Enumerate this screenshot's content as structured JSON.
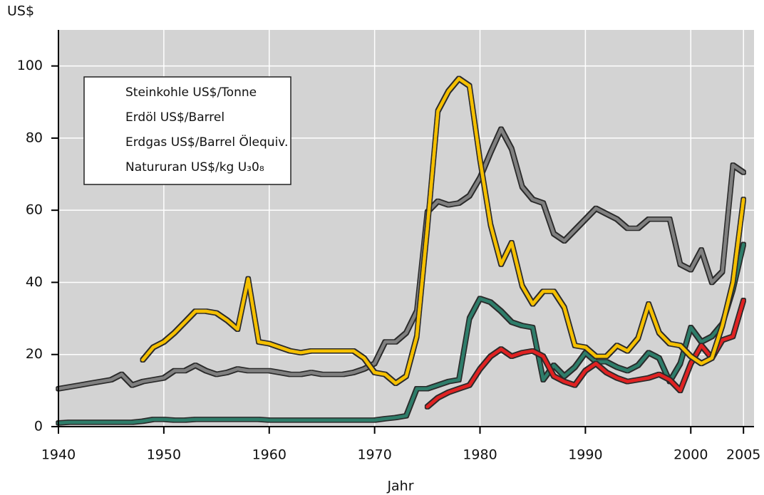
{
  "chart_data": {
    "type": "line",
    "ylabel": "US$",
    "xlabel": "Jahr",
    "xlim": [
      1940,
      2006
    ],
    "ylim": [
      0,
      110
    ],
    "xticks": [
      1940,
      1950,
      1960,
      1970,
      1980,
      1990,
      2000,
      2005
    ],
    "yticks": [
      0,
      20,
      40,
      60,
      80,
      100
    ],
    "grid": true,
    "legend": "upper left",
    "x": [
      1940,
      1941,
      1942,
      1943,
      1944,
      1945,
      1946,
      1947,
      1948,
      1949,
      1950,
      1951,
      1952,
      1953,
      1954,
      1955,
      1956,
      1957,
      1958,
      1959,
      1960,
      1961,
      1962,
      1963,
      1964,
      1965,
      1966,
      1967,
      1968,
      1969,
      1970,
      1971,
      1972,
      1973,
      1974,
      1975,
      1976,
      1977,
      1978,
      1979,
      1980,
      1981,
      1982,
      1983,
      1984,
      1985,
      1986,
      1987,
      1988,
      1989,
      1990,
      1991,
      1992,
      1993,
      1994,
      1995,
      1996,
      1997,
      1998,
      1999,
      2000,
      2001,
      2002,
      2003,
      2004,
      2005
    ],
    "series": [
      {
        "name": "Steinkohle US$/Tonne",
        "color": "#808080",
        "values": [
          10.5,
          11,
          11.5,
          12,
          12.5,
          13,
          14.5,
          11.5,
          12.5,
          13,
          13.5,
          15.5,
          15.5,
          17,
          15.5,
          14.5,
          15,
          16,
          15.5,
          15.5,
          15.5,
          15,
          14.5,
          14.5,
          15,
          14.5,
          14.5,
          14.5,
          15,
          16,
          17.5,
          23.5,
          23.5,
          26,
          32,
          59.5,
          62.5,
          61.5,
          62,
          64,
          69,
          76,
          82.5,
          77,
          66.5,
          63,
          62,
          53.5,
          51.5,
          54.5,
          57.5,
          60.5,
          59,
          57.5,
          55,
          55,
          57.5,
          57.5,
          57.5,
          45,
          43.5,
          49,
          40,
          43,
          72.5,
          70.5
        ]
      },
      {
        "name": "Erdöl US$/Barrel",
        "color": "#2e7d6b",
        "values": [
          1,
          1.2,
          1.2,
          1.2,
          1.2,
          1.2,
          1.2,
          1.2,
          1.5,
          2,
          2,
          1.8,
          1.8,
          2,
          2,
          2,
          2,
          2,
          2,
          2,
          1.8,
          1.8,
          1.8,
          1.8,
          1.8,
          1.8,
          1.8,
          1.8,
          1.8,
          1.8,
          1.8,
          2.2,
          2.5,
          3,
          10.5,
          10.5,
          11.5,
          12.5,
          13,
          30,
          35.5,
          34.5,
          32,
          29,
          28,
          27.5,
          13,
          17,
          14,
          16.5,
          20.5,
          18,
          18,
          16.5,
          15.5,
          17,
          20.5,
          19,
          12.5,
          17.5,
          27.5,
          23.5,
          25,
          28.5,
          38,
          50.5
        ]
      },
      {
        "name": "Erdgas US$/Barrel Ölequiv.",
        "color": "#e02020",
        "values": [
          null,
          null,
          null,
          null,
          null,
          null,
          null,
          null,
          null,
          null,
          null,
          null,
          null,
          null,
          null,
          null,
          null,
          null,
          null,
          null,
          null,
          null,
          null,
          null,
          null,
          null,
          null,
          null,
          null,
          null,
          null,
          null,
          null,
          null,
          null,
          5.5,
          8,
          9.5,
          10.5,
          11.5,
          16,
          19.5,
          21.5,
          19.5,
          20.5,
          21,
          19.5,
          14,
          12.5,
          11.5,
          15.5,
          17.5,
          15,
          13.5,
          12.5,
          13,
          13.5,
          14.5,
          13,
          10,
          17.5,
          22.5,
          19,
          24,
          25,
          35
        ]
      },
      {
        "name": "Natururan US$/kg U₃0₈",
        "color": "#f5c000",
        "values": [
          null,
          null,
          null,
          null,
          null,
          null,
          null,
          null,
          18.5,
          22,
          23.5,
          26,
          29,
          32,
          32,
          31.5,
          29.5,
          27,
          41,
          23.5,
          23,
          22,
          21,
          20.5,
          21,
          21,
          21,
          21,
          21,
          19,
          15,
          14.5,
          12,
          14,
          25,
          55,
          87.5,
          93,
          96.5,
          94.5,
          74,
          56,
          45,
          51,
          39,
          34,
          37.5,
          37.5,
          33,
          22.5,
          22,
          19.5,
          19.5,
          22.5,
          21,
          24.5,
          34,
          26,
          23,
          22.5,
          19.5,
          17.5,
          19,
          28,
          40,
          63
        ]
      }
    ]
  }
}
